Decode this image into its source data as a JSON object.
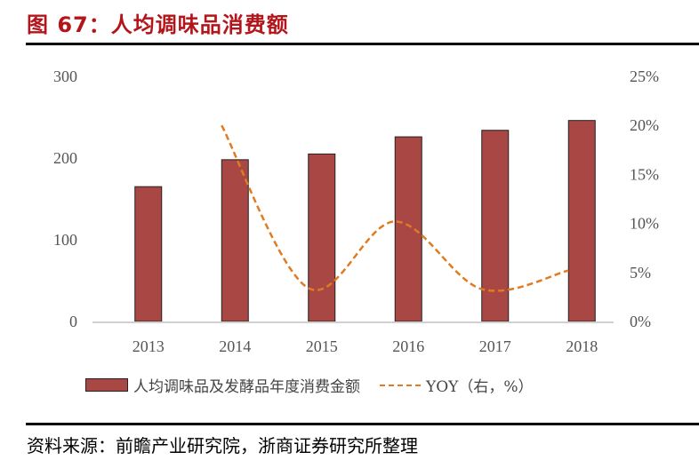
{
  "title": "图 67：人均调味品消费额",
  "source": "资料来源：前瞻产业研究院，浙商证券研究所整理",
  "colors": {
    "bar": "#a84744",
    "line": "#e07b22",
    "title": "#b3151b"
  },
  "chart_data": {
    "type": "bar+line",
    "categories": [
      "2013",
      "2014",
      "2015",
      "2016",
      "2017",
      "2018"
    ],
    "series": [
      {
        "name": "人均调味品及发酵品年度消费金额",
        "type": "bar",
        "axis": "left",
        "values": [
          165,
          198,
          205,
          226,
          234,
          246
        ]
      },
      {
        "name": "YOY（右，%）",
        "type": "line",
        "style": "dashed-smooth",
        "axis": "right",
        "values": [
          null,
          20.0,
          3.4,
          10.2,
          3.3,
          5.2
        ]
      }
    ],
    "left_axis": {
      "ylim": [
        0,
        300
      ],
      "ticks": [
        "0",
        "100",
        "200",
        "300"
      ]
    },
    "right_axis": {
      "ylim": [
        0,
        25
      ],
      "ticks": [
        "0%",
        "5%",
        "10%",
        "15%",
        "20%",
        "25%"
      ]
    },
    "grid": false,
    "legend": "bottom"
  }
}
